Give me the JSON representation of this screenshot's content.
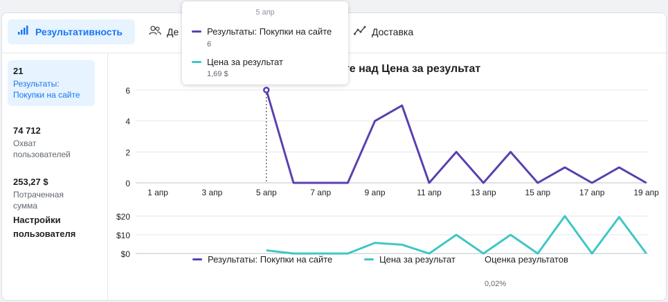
{
  "tabs": {
    "active_label": "Результативность",
    "demography_label": "Де",
    "delivery_label": "Доставка"
  },
  "sidebar": {
    "metrics": [
      {
        "value": "21",
        "caption": "Результаты:\nПокупки на сайте"
      },
      {
        "value": "74 712",
        "caption": "Охват\nпользователей"
      },
      {
        "value": "253,27 $",
        "caption": "Потраченная сумма"
      }
    ],
    "settings_label": "Настройки\nпользователя"
  },
  "chart_title": "и на сайте над Цена за результат",
  "tooltip": {
    "date": "5 апр",
    "rows": [
      {
        "label": "Результаты: Покупки на сайте",
        "value": "6"
      },
      {
        "label": "Цена за результат",
        "value": "1,69 $"
      }
    ]
  },
  "legend": {
    "series1": "Результаты: Покупки на сайте",
    "series2": "Цена за результат",
    "estimate_label": "Оценка результатов",
    "estimate_value": "0,02%"
  },
  "colors": {
    "purple": "#5b3faf",
    "teal": "#3ec6c6",
    "accent": "#1877f2"
  },
  "chart_data": [
    {
      "type": "line",
      "name": "Результаты: Покупки на сайте",
      "x": [
        "5 апр",
        "6 апр",
        "7 апр",
        "8 апр",
        "9 апр",
        "10 апр",
        "11 апр",
        "12 апр",
        "13 апр",
        "14 апр",
        "15 апр",
        "16 апр",
        "17 апр",
        "18 апр",
        "19 апр"
      ],
      "values": [
        6,
        0,
        0,
        0,
        4,
        5,
        0,
        2,
        0,
        2,
        0,
        1,
        0,
        1,
        0
      ],
      "x_tick_labels": [
        "1 апр",
        "3 апр",
        "5 апр",
        "7 апр",
        "9 апр",
        "11 апр",
        "13 апр",
        "15 апр",
        "17 апр",
        "19 апр"
      ],
      "y_tick_labels": [
        "0",
        "2",
        "4",
        "6"
      ],
      "ylim": [
        0,
        6
      ],
      "grid": true
    },
    {
      "type": "line",
      "name": "Цена за результат",
      "x": [
        "5 апр",
        "6 апр",
        "7 апр",
        "8 апр",
        "9 апр",
        "10 апр",
        "11 апр",
        "12 апр",
        "13 апр",
        "14 апр",
        "15 апр",
        "16 апр",
        "17 апр",
        "18 апр",
        "19 апр"
      ],
      "values": [
        1.69,
        0,
        0,
        0,
        5.7,
        4.7,
        0,
        10,
        0,
        10,
        0,
        20,
        0,
        19.5,
        0
      ],
      "y_tick_labels": [
        "$0",
        "$10",
        "$20"
      ],
      "ylim": [
        0,
        20
      ],
      "grid": true
    }
  ]
}
